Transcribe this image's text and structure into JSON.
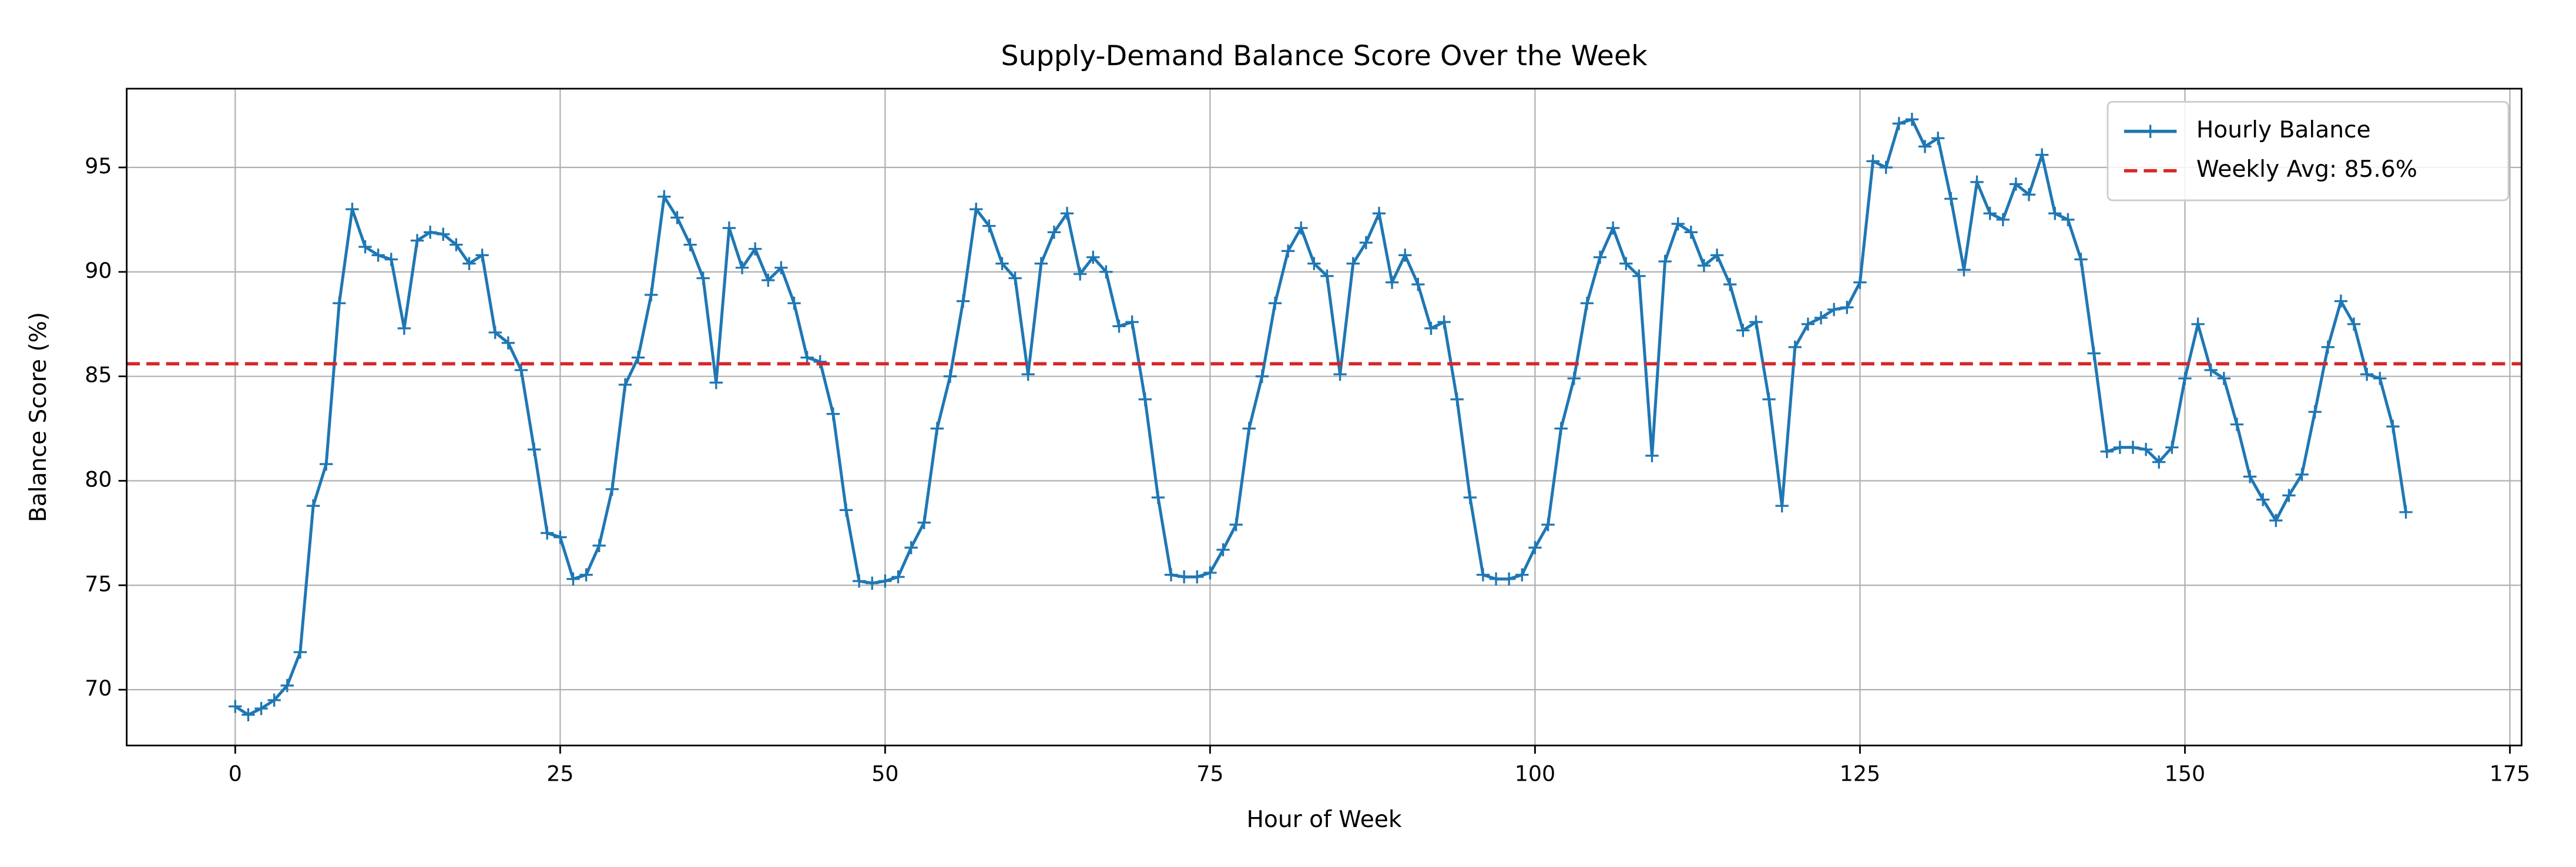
{
  "chart_data": {
    "type": "line",
    "title": "Supply-Demand Balance Score Over the Week",
    "xlabel": "Hour of Week",
    "ylabel": "Balance Score (%)",
    "x": [
      0,
      1,
      2,
      3,
      4,
      5,
      6,
      7,
      8,
      9,
      10,
      11,
      12,
      13,
      14,
      15,
      16,
      17,
      18,
      19,
      20,
      21,
      22,
      23,
      24,
      25,
      26,
      27,
      28,
      29,
      30,
      31,
      32,
      33,
      34,
      35,
      36,
      37,
      38,
      39,
      40,
      41,
      42,
      43,
      44,
      45,
      46,
      47,
      48,
      49,
      50,
      51,
      52,
      53,
      54,
      55,
      56,
      57,
      58,
      59,
      60,
      61,
      62,
      63,
      64,
      65,
      66,
      67,
      68,
      69,
      70,
      71,
      72,
      73,
      74,
      75,
      76,
      77,
      78,
      79,
      80,
      81,
      82,
      83,
      84,
      85,
      86,
      87,
      88,
      89,
      90,
      91,
      92,
      93,
      94,
      95,
      96,
      97,
      98,
      99,
      100,
      101,
      102,
      103,
      104,
      105,
      106,
      107,
      108,
      109,
      110,
      111,
      112,
      113,
      114,
      115,
      116,
      117,
      118,
      119,
      120,
      121,
      122,
      123,
      124,
      125,
      126,
      127,
      128,
      129,
      130,
      131,
      132,
      133,
      134,
      135,
      136,
      137,
      138,
      139,
      140,
      141,
      142,
      143,
      144,
      145,
      146,
      147,
      148,
      149,
      150,
      151,
      152,
      153,
      154,
      155,
      156,
      157,
      158,
      159,
      160,
      161,
      162,
      163,
      164,
      165,
      166,
      167
    ],
    "series": [
      {
        "name": "Hourly Balance",
        "color": "#1f77b4",
        "values": [
          69.2,
          68.8,
          69.1,
          69.5,
          70.2,
          71.8,
          78.8,
          80.8,
          88.5,
          93.0,
          91.2,
          90.8,
          90.6,
          87.3,
          91.5,
          91.9,
          91.8,
          91.3,
          90.4,
          90.8,
          87.1,
          86.6,
          85.3,
          81.5,
          77.5,
          77.3,
          75.3,
          75.5,
          76.9,
          79.6,
          84.6,
          85.9,
          88.9,
          93.6,
          92.6,
          91.3,
          89.7,
          84.7,
          92.1,
          90.2,
          91.1,
          89.6,
          90.2,
          88.5,
          85.9,
          85.7,
          83.2,
          78.6,
          75.2,
          75.1,
          75.2,
          75.4,
          76.8,
          78.0,
          82.5,
          85.0,
          88.6,
          93.0,
          92.2,
          90.4,
          89.7,
          85.1,
          90.4,
          91.9,
          92.8,
          89.9,
          90.7,
          90.0,
          87.4,
          87.6,
          83.9,
          79.2,
          75.5,
          75.4,
          75.4,
          75.6,
          76.7,
          77.9,
          82.5,
          85.0,
          88.5,
          91.0,
          92.1,
          90.4,
          89.8,
          85.1,
          90.4,
          91.4,
          92.8,
          89.5,
          90.8,
          89.4,
          87.3,
          87.6,
          83.9,
          79.2,
          75.5,
          75.3,
          75.3,
          75.5,
          76.8,
          77.9,
          82.5,
          84.9,
          88.5,
          90.7,
          92.1,
          90.4,
          89.8,
          81.2,
          90.5,
          92.3,
          91.9,
          90.3,
          90.8,
          89.4,
          87.2,
          87.6,
          83.9,
          78.8,
          86.4,
          87.5,
          87.8,
          88.2,
          88.3,
          89.5,
          95.3,
          95.0,
          97.1,
          97.3,
          96.0,
          96.4,
          93.5,
          90.1,
          94.3,
          92.8,
          92.5,
          94.2,
          93.7,
          95.6,
          92.8,
          92.5,
          90.6,
          86.1,
          81.4,
          81.6,
          81.6,
          81.5,
          80.9,
          81.6,
          84.9,
          87.5,
          85.3,
          84.9,
          82.7,
          80.2,
          79.1,
          78.1,
          79.3,
          80.3,
          83.3,
          86.4,
          88.6,
          87.5,
          85.1,
          84.9,
          82.6,
          78.5
        ]
      }
    ],
    "hlines": [
      {
        "name": "Weekly Avg: 85.6%",
        "value": 85.6,
        "color": "#d62728"
      }
    ],
    "xlim": [
      -8.35,
      175.9
    ],
    "ylim": [
      67.33,
      98.77
    ],
    "xticks": [
      0,
      25,
      50,
      75,
      100,
      125,
      150,
      175
    ],
    "yticks": [
      70,
      75,
      80,
      85,
      90,
      95
    ],
    "grid": true,
    "legend": "upper right"
  }
}
